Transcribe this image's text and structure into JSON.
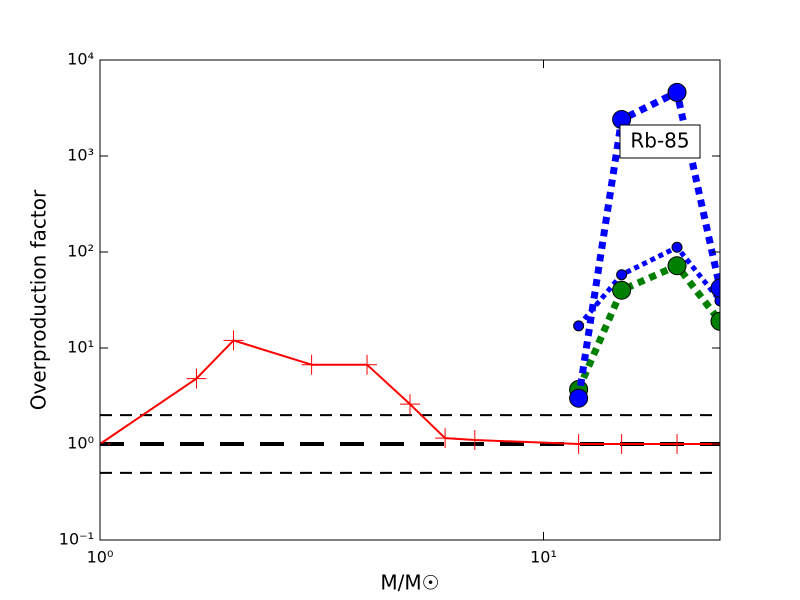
{
  "chart_data": {
    "type": "line",
    "xlabel": "M/M☉",
    "ylabel": "Overproduction factor",
    "xscale": "log",
    "yscale": "log",
    "xlim": [
      1,
      25
    ],
    "ylim": [
      0.1,
      10000
    ],
    "xticks": [
      {
        "value": 1,
        "label": "10⁰"
      },
      {
        "value": 10,
        "label": "10¹"
      }
    ],
    "yticks": [
      {
        "value": 0.1,
        "label": "10⁻¹"
      },
      {
        "value": 1,
        "label": "10⁰"
      },
      {
        "value": 10,
        "label": "10¹"
      },
      {
        "value": 100,
        "label": "10²"
      },
      {
        "value": 1000,
        "label": "10³"
      },
      {
        "value": 10000,
        "label": "10⁴"
      }
    ],
    "hlines": [
      {
        "y": 2,
        "color": "#000000",
        "width": 2,
        "dash": "dashed"
      },
      {
        "y": 1,
        "color": "#000000",
        "width": 4,
        "dash": "dashed"
      },
      {
        "y": 0.5,
        "color": "#000000",
        "width": 2,
        "dash": "dashed"
      }
    ],
    "series": [
      {
        "color": "#ff0000",
        "linestyle": "solid",
        "width": 2,
        "marker": "plus",
        "size": 10,
        "x": [
          1,
          1.65,
          2,
          3,
          4,
          5,
          6,
          7,
          12,
          15,
          20,
          25
        ],
        "values": [
          1,
          4.8,
          12,
          6.7,
          6.7,
          2.6,
          1.15,
          1.1,
          1,
          1,
          1,
          1
        ]
      },
      {
        "color": "#0000ff",
        "linestyle": "dotted",
        "width": 5,
        "marker": "circle",
        "size": 5,
        "x": [
          12,
          15,
          20,
          25
        ],
        "values": [
          17,
          58,
          112,
          31
        ]
      },
      {
        "color": "#008000",
        "linestyle": "dotted",
        "width": 7,
        "marker": "circle",
        "size": 9,
        "x": [
          12,
          15,
          20,
          25
        ],
        "values": [
          3.7,
          40,
          72,
          19
        ]
      },
      {
        "color": "#0000ff",
        "linestyle": "dotted",
        "width": 7,
        "marker": "circle",
        "size": 9,
        "x": [
          12,
          15,
          20,
          25
        ],
        "values": [
          3,
          2400,
          4600,
          42
        ]
      }
    ],
    "annotation": "Rb-85"
  }
}
